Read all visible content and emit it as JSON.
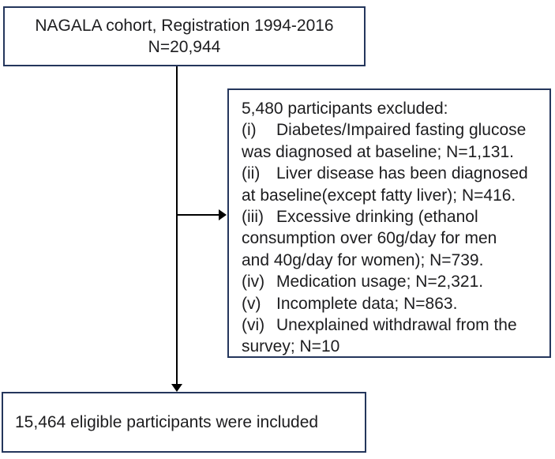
{
  "colors": {
    "bg": "#ffffff",
    "border": "#24365c",
    "line": "#000000",
    "text": "#1d1d1f"
  },
  "top_box": {
    "line1": "NAGALA cohort, Registration 1994-2016",
    "line2": "N=20,944"
  },
  "exclusion_box": {
    "heading": "5,480 participants excluded:",
    "total_excluded": "5,480",
    "lines": [
      {
        "num": "(i)",
        "text": "Diabetes/Impaired fasting glucose"
      },
      {
        "num": "",
        "text": "was diagnosed at baseline; N=1,131."
      },
      {
        "num": "(ii)",
        "text": "Liver disease has been diagnosed"
      },
      {
        "num": "",
        "text": "at baseline(except fatty liver); N=416."
      },
      {
        "num": "(iii)",
        "text": "Excessive drinking (ethanol"
      },
      {
        "num": "",
        "text": "consumption over 60g/day for men"
      },
      {
        "num": "",
        "text": "and 40g/day for women); N=739."
      },
      {
        "num": "(iv)",
        "text": "Medication usage; N=2,321."
      },
      {
        "num": "(v)",
        "text": "Incomplete data; N=863."
      },
      {
        "num": "(vi)",
        "text": "Unexplained withdrawal from the"
      },
      {
        "num": "",
        "text": "survey; N=10"
      }
    ]
  },
  "bottom_box": {
    "text": "15,464 eligible participants were included"
  }
}
